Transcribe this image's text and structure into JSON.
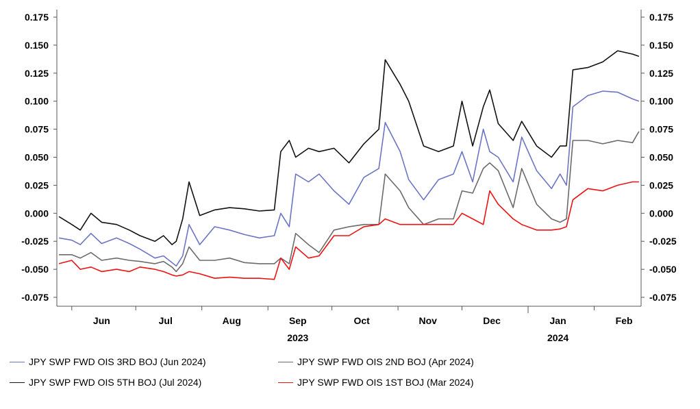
{
  "chart_data": {
    "type": "line",
    "title": "",
    "xlabel": "",
    "ylabel": "",
    "ylim": [
      -0.075,
      0.175
    ],
    "y_ticks": [
      "0.175",
      "0.150",
      "0.125",
      "0.100",
      "0.075",
      "0.050",
      "0.025",
      "0.000",
      "-0.025",
      "-0.050",
      "-0.075"
    ],
    "y_tick_values": [
      0.175,
      0.15,
      0.125,
      0.1,
      0.075,
      0.05,
      0.025,
      0.0,
      -0.025,
      -0.05,
      -0.075
    ],
    "x_months": [
      {
        "label": "Jun",
        "year": "",
        "date": "2023-06-15"
      },
      {
        "label": "Jul",
        "year": "",
        "date": "2023-07-15"
      },
      {
        "label": "Aug",
        "year": "",
        "date": "2023-08-15"
      },
      {
        "label": "Sep",
        "year": "2023",
        "date": "2023-09-15"
      },
      {
        "label": "Oct",
        "year": "",
        "date": "2023-10-15"
      },
      {
        "label": "Nov",
        "year": "",
        "date": "2023-11-15"
      },
      {
        "label": "Dec",
        "year": "",
        "date": "2023-12-15"
      },
      {
        "label": "Jan",
        "year": "2024",
        "date": "2024-01-15"
      },
      {
        "label": "Feb",
        "year": "",
        "date": "2024-02-15"
      }
    ],
    "x_month_boundaries": [
      "2023-06-01",
      "2023-07-01",
      "2023-08-01",
      "2023-09-01",
      "2023-10-01",
      "2023-11-01",
      "2023-12-01",
      "2024-01-01",
      "2024-02-01"
    ],
    "x_range": [
      "2023-05-25",
      "2024-02-23"
    ],
    "grid": false,
    "legend_position": "bottom",
    "series": [
      {
        "name": "JPY SWP FWD OIS 3RD BOJ (Jun 2024)",
        "color": "#6b74c4",
        "x": [
          "2023-05-26",
          "2023-06-01",
          "2023-06-05",
          "2023-06-10",
          "2023-06-15",
          "2023-06-22",
          "2023-06-28",
          "2023-07-03",
          "2023-07-10",
          "2023-07-14",
          "2023-07-18",
          "2023-07-20",
          "2023-07-23",
          "2023-07-26",
          "2023-07-31",
          "2023-08-07",
          "2023-08-14",
          "2023-08-21",
          "2023-08-28",
          "2023-09-04",
          "2023-09-07",
          "2023-09-11",
          "2023-09-14",
          "2023-09-20",
          "2023-09-25",
          "2023-10-02",
          "2023-10-09",
          "2023-10-16",
          "2023-10-23",
          "2023-10-26",
          "2023-11-02",
          "2023-11-06",
          "2023-11-13",
          "2023-11-20",
          "2023-11-27",
          "2023-12-01",
          "2023-12-06",
          "2023-12-11",
          "2023-12-14",
          "2023-12-18",
          "2023-12-25",
          "2023-12-29",
          "2024-01-05",
          "2024-01-12",
          "2024-01-16",
          "2024-01-19",
          "2024-01-22",
          "2024-01-29",
          "2024-02-05",
          "2024-02-12",
          "2024-02-19",
          "2024-02-22"
        ],
        "values": [
          -0.022,
          -0.024,
          -0.028,
          -0.018,
          -0.027,
          -0.022,
          -0.027,
          -0.032,
          -0.04,
          -0.038,
          -0.044,
          -0.047,
          -0.038,
          -0.01,
          -0.028,
          -0.012,
          -0.015,
          -0.019,
          -0.022,
          -0.02,
          0.0,
          -0.012,
          0.035,
          0.028,
          0.035,
          0.02,
          0.008,
          0.032,
          0.04,
          0.081,
          0.055,
          0.03,
          0.012,
          0.03,
          0.035,
          0.055,
          0.028,
          0.075,
          0.055,
          0.05,
          0.028,
          0.068,
          0.038,
          0.022,
          0.035,
          0.025,
          0.095,
          0.105,
          0.109,
          0.108,
          0.102,
          0.1
        ]
      },
      {
        "name": "JPY SWP FWD OIS 2ND BOJ (Apr 2024)",
        "color": "#6a6a6a",
        "x": [
          "2023-05-26",
          "2023-06-01",
          "2023-06-05",
          "2023-06-10",
          "2023-06-15",
          "2023-06-22",
          "2023-06-28",
          "2023-07-03",
          "2023-07-10",
          "2023-07-14",
          "2023-07-18",
          "2023-07-20",
          "2023-07-23",
          "2023-07-26",
          "2023-07-31",
          "2023-08-07",
          "2023-08-14",
          "2023-08-21",
          "2023-08-28",
          "2023-09-04",
          "2023-09-07",
          "2023-09-11",
          "2023-09-14",
          "2023-09-20",
          "2023-09-25",
          "2023-10-02",
          "2023-10-09",
          "2023-10-16",
          "2023-10-23",
          "2023-10-26",
          "2023-11-02",
          "2023-11-06",
          "2023-11-13",
          "2023-11-20",
          "2023-11-27",
          "2023-12-01",
          "2023-12-06",
          "2023-12-11",
          "2023-12-14",
          "2023-12-18",
          "2023-12-25",
          "2023-12-29",
          "2024-01-05",
          "2024-01-12",
          "2024-01-16",
          "2024-01-19",
          "2024-01-22",
          "2024-01-29",
          "2024-02-05",
          "2024-02-12",
          "2024-02-19",
          "2024-02-22"
        ],
        "values": [
          -0.037,
          -0.037,
          -0.04,
          -0.035,
          -0.042,
          -0.04,
          -0.042,
          -0.043,
          -0.045,
          -0.043,
          -0.048,
          -0.052,
          -0.045,
          -0.03,
          -0.042,
          -0.042,
          -0.04,
          -0.044,
          -0.045,
          -0.045,
          -0.04,
          -0.045,
          -0.018,
          -0.028,
          -0.035,
          -0.015,
          -0.012,
          -0.01,
          -0.01,
          0.035,
          0.02,
          0.005,
          -0.01,
          -0.005,
          -0.005,
          0.02,
          0.018,
          0.04,
          0.045,
          0.038,
          0.005,
          0.04,
          0.008,
          -0.005,
          -0.008,
          -0.005,
          0.065,
          0.065,
          0.062,
          0.065,
          0.063,
          0.073
        ]
      },
      {
        "name": "JPY SWP FWD OIS 5TH BOJ (Jul 2024)",
        "color": "#111111",
        "x": [
          "2023-05-26",
          "2023-06-01",
          "2023-06-05",
          "2023-06-10",
          "2023-06-15",
          "2023-06-22",
          "2023-06-28",
          "2023-07-03",
          "2023-07-10",
          "2023-07-14",
          "2023-07-18",
          "2023-07-20",
          "2023-07-23",
          "2023-07-26",
          "2023-07-31",
          "2023-08-07",
          "2023-08-14",
          "2023-08-21",
          "2023-08-28",
          "2023-09-04",
          "2023-09-07",
          "2023-09-11",
          "2023-09-14",
          "2023-09-20",
          "2023-09-25",
          "2023-10-02",
          "2023-10-09",
          "2023-10-16",
          "2023-10-23",
          "2023-10-26",
          "2023-11-02",
          "2023-11-06",
          "2023-11-13",
          "2023-11-20",
          "2023-11-27",
          "2023-12-01",
          "2023-12-06",
          "2023-12-11",
          "2023-12-14",
          "2023-12-18",
          "2023-12-25",
          "2023-12-29",
          "2024-01-05",
          "2024-01-12",
          "2024-01-16",
          "2024-01-19",
          "2024-01-22",
          "2024-01-29",
          "2024-02-05",
          "2024-02-12",
          "2024-02-19",
          "2024-02-22"
        ],
        "values": [
          -0.003,
          -0.01,
          -0.015,
          0.0,
          -0.008,
          -0.01,
          -0.015,
          -0.02,
          -0.025,
          -0.02,
          -0.028,
          -0.025,
          -0.005,
          0.028,
          -0.002,
          0.003,
          0.005,
          0.004,
          0.002,
          0.003,
          0.055,
          0.065,
          0.05,
          0.058,
          0.055,
          0.058,
          0.045,
          0.062,
          0.075,
          0.137,
          0.115,
          0.1,
          0.06,
          0.055,
          0.06,
          0.1,
          0.06,
          0.095,
          0.11,
          0.08,
          0.065,
          0.082,
          0.06,
          0.05,
          0.06,
          0.06,
          0.128,
          0.13,
          0.135,
          0.145,
          0.142,
          0.14
        ]
      },
      {
        "name": "JPY SWP FWD OIS 1ST BOJ (Mar 2024)",
        "color": "#ee1111",
        "x": [
          "2023-05-26",
          "2023-06-01",
          "2023-06-05",
          "2023-06-10",
          "2023-06-15",
          "2023-06-22",
          "2023-06-28",
          "2023-07-03",
          "2023-07-10",
          "2023-07-14",
          "2023-07-18",
          "2023-07-20",
          "2023-07-23",
          "2023-07-26",
          "2023-07-31",
          "2023-08-07",
          "2023-08-14",
          "2023-08-21",
          "2023-08-28",
          "2023-09-04",
          "2023-09-07",
          "2023-09-11",
          "2023-09-14",
          "2023-09-20",
          "2023-09-25",
          "2023-10-02",
          "2023-10-09",
          "2023-10-16",
          "2023-10-23",
          "2023-10-26",
          "2023-11-02",
          "2023-11-06",
          "2023-11-13",
          "2023-11-20",
          "2023-11-27",
          "2023-12-01",
          "2023-12-06",
          "2023-12-11",
          "2023-12-14",
          "2023-12-18",
          "2023-12-25",
          "2023-12-29",
          "2024-01-05",
          "2024-01-12",
          "2024-01-16",
          "2024-01-19",
          "2024-01-22",
          "2024-01-29",
          "2024-02-05",
          "2024-02-12",
          "2024-02-19",
          "2024-02-22"
        ],
        "values": [
          -0.045,
          -0.042,
          -0.05,
          -0.048,
          -0.052,
          -0.05,
          -0.052,
          -0.048,
          -0.05,
          -0.052,
          -0.055,
          -0.056,
          -0.055,
          -0.052,
          -0.054,
          -0.058,
          -0.057,
          -0.058,
          -0.058,
          -0.059,
          -0.04,
          -0.05,
          -0.03,
          -0.04,
          -0.038,
          -0.02,
          -0.02,
          -0.012,
          -0.01,
          -0.005,
          -0.01,
          -0.01,
          -0.01,
          -0.01,
          -0.01,
          0.0,
          -0.005,
          -0.01,
          0.02,
          0.008,
          -0.005,
          -0.01,
          -0.015,
          -0.015,
          -0.014,
          -0.012,
          0.012,
          0.022,
          0.02,
          0.025,
          0.028,
          0.028
        ]
      }
    ]
  },
  "legend": {
    "items": [
      {
        "label": "JPY SWP FWD OIS 3RD BOJ (Jun 2024)",
        "color": "#6b74c4"
      },
      {
        "label": "JPY SWP FWD OIS 2ND BOJ (Apr 2024)",
        "color": "#6a6a6a"
      },
      {
        "label": "JPY SWP FWD OIS 5TH BOJ (Jul 2024)",
        "color": "#111111"
      },
      {
        "label": "JPY SWP FWD OIS 1ST BOJ (Mar 2024)",
        "color": "#ee1111"
      }
    ]
  }
}
